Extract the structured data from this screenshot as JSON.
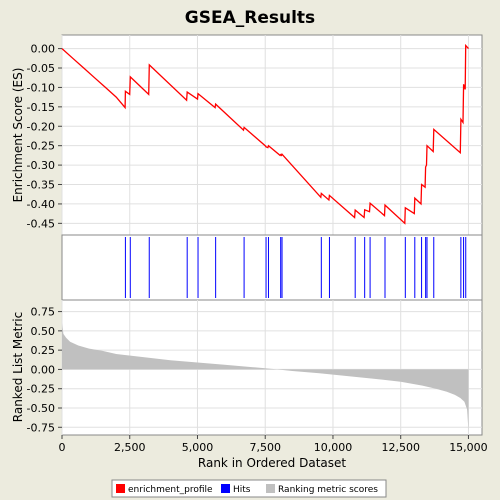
{
  "chart_data": [
    {
      "type": "line",
      "title": "GSEA_Results",
      "ylabel": "Enrichment Score (ES)",
      "xlim": [
        0,
        15500
      ],
      "ylim": [
        -0.48,
        0.035
      ],
      "yticks": [
        0.0,
        -0.05,
        -0.1,
        -0.15,
        -0.2,
        -0.25,
        -0.3,
        -0.35,
        -0.4,
        -0.45
      ],
      "ytick_labels": [
        "0.00",
        "-0.05",
        "-0.10",
        "-0.15",
        "-0.20",
        "-0.25",
        "-0.30",
        "-0.35",
        "-0.40",
        "-0.45"
      ],
      "grid": true,
      "series": [
        {
          "name": "enrichment_profile",
          "color": "#ff0000",
          "x": [
            0,
            400,
            800,
            1200,
            1600,
            2000,
            2330,
            2340,
            2500,
            2520,
            3200,
            3220,
            4600,
            4620,
            5000,
            5020,
            5650,
            5670,
            6700,
            6720,
            7500,
            7530,
            7600,
            7620,
            8050,
            8070,
            8100,
            8120,
            9550,
            9570,
            9850,
            9870,
            10800,
            10820,
            11150,
            11170,
            11350,
            11370,
            11900,
            11920,
            12650,
            12670,
            13000,
            13020,
            13250,
            13270,
            13400,
            13420,
            13450,
            13470,
            13700,
            13720,
            14700,
            14720,
            14800,
            14820,
            14880,
            14900,
            15000
          ],
          "y": [
            0.0,
            -0.025,
            -0.05,
            -0.075,
            -0.1,
            -0.125,
            -0.152,
            -0.11,
            -0.118,
            -0.073,
            -0.118,
            -0.042,
            -0.133,
            -0.112,
            -0.13,
            -0.116,
            -0.152,
            -0.143,
            -0.21,
            -0.203,
            -0.25,
            -0.253,
            -0.255,
            -0.25,
            -0.275,
            -0.273,
            -0.275,
            -0.272,
            -0.383,
            -0.373,
            -0.39,
            -0.378,
            -0.435,
            -0.416,
            -0.435,
            -0.415,
            -0.42,
            -0.398,
            -0.43,
            -0.403,
            -0.45,
            -0.41,
            -0.425,
            -0.385,
            -0.4,
            -0.35,
            -0.357,
            -0.305,
            -0.3,
            -0.25,
            -0.265,
            -0.208,
            -0.268,
            -0.182,
            -0.19,
            -0.092,
            -0.105,
            0.008,
            0.0
          ]
        }
      ]
    },
    {
      "type": "hits",
      "series": [
        {
          "name": "Hits",
          "color": "#0000ff",
          "x": [
            2340,
            2520,
            3220,
            4620,
            5020,
            5670,
            6720,
            7530,
            7620,
            8070,
            8120,
            9570,
            9870,
            10820,
            11170,
            11370,
            11920,
            12670,
            13020,
            13270,
            13420,
            13470,
            13720,
            14720,
            14820,
            14900
          ]
        }
      ]
    },
    {
      "type": "area",
      "xlabel": "Rank in Ordered Dataset",
      "ylabel": "Ranked List Metric",
      "xlim": [
        0,
        15500
      ],
      "ylim": [
        -0.85,
        0.9
      ],
      "yticks": [
        0.75,
        0.5,
        0.25,
        0.0,
        -0.25,
        -0.5,
        -0.75
      ],
      "ytick_labels": [
        "0.75",
        "0.50",
        "0.25",
        "0.00",
        "-0.25",
        "-0.50",
        "-0.75"
      ],
      "xticks": [
        0,
        2500,
        5000,
        7500,
        10000,
        12500,
        15000
      ],
      "xtick_labels": [
        "0",
        "2,500",
        "5,000",
        "7,500",
        "10,000",
        "12,500",
        "15,000"
      ],
      "grid": true,
      "series": [
        {
          "name": "Ranking metric scores",
          "color": "#c0c0c0",
          "x": [
            0,
            50,
            150,
            300,
            600,
            1000,
            1500,
            2000,
            3000,
            4000,
            5000,
            6000,
            7000,
            7800,
            8500,
            9500,
            10500,
            11500,
            12500,
            13300,
            13800,
            14200,
            14500,
            14700,
            14850,
            14950,
            15000
          ],
          "y": [
            0.6,
            0.46,
            0.41,
            0.36,
            0.31,
            0.27,
            0.24,
            0.2,
            0.16,
            0.12,
            0.09,
            0.06,
            0.03,
            0.005,
            -0.02,
            -0.05,
            -0.085,
            -0.12,
            -0.16,
            -0.21,
            -0.25,
            -0.29,
            -0.33,
            -0.37,
            -0.42,
            -0.52,
            -0.8
          ]
        }
      ]
    }
  ],
  "legend": {
    "position": "bottom",
    "items": [
      {
        "label": "enrichment_profile",
        "color": "#ff0000"
      },
      {
        "label": "Hits",
        "color": "#0000ff"
      },
      {
        "label": "Ranking metric scores",
        "color": "#c0c0c0"
      }
    ]
  }
}
